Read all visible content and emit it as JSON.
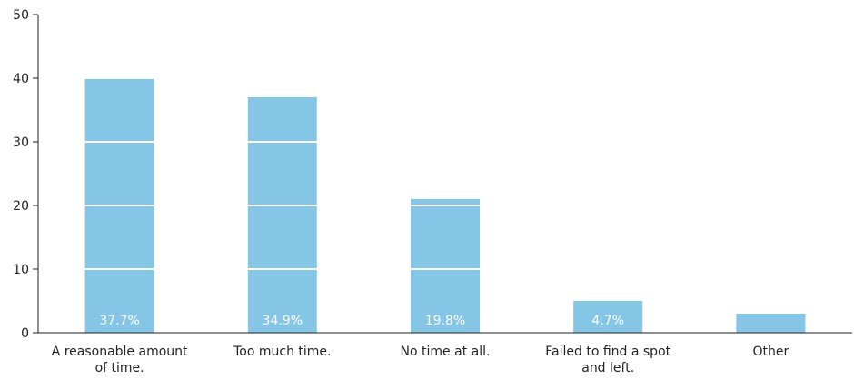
{
  "chart_data": {
    "type": "bar",
    "title": "",
    "xlabel": "",
    "ylabel": "",
    "categories": [
      [
        "A reasonable amount",
        "of time."
      ],
      [
        "Too much time."
      ],
      [
        "No time at all."
      ],
      [
        "Failed to find a spot",
        "and left."
      ],
      [
        "Other"
      ]
    ],
    "values": [
      40,
      37,
      21,
      5,
      3
    ],
    "data_labels": [
      "37.7%",
      "34.9%",
      "19.8%",
      "4.7%",
      ""
    ],
    "ylim": [
      0,
      50
    ],
    "yticks": [
      0,
      10,
      20,
      30,
      40,
      50
    ],
    "grid": true,
    "legend": "none",
    "colors": {
      "bar": "#85C5E5",
      "axis": "#222222",
      "text": "#222222",
      "data_label": "#ffffff",
      "gridline": "#ffffff"
    }
  }
}
